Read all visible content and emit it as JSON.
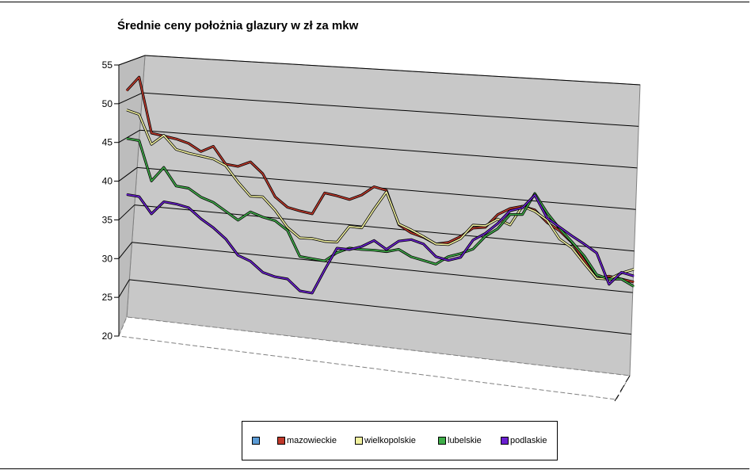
{
  "chart_data": {
    "type": "line",
    "title": "Średnie ceny położnia glazury w zł za mkw",
    "xlabel": "",
    "ylabel": "",
    "ylim": [
      20,
      55
    ],
    "yticks": [
      "20",
      "25",
      "30",
      "35",
      "40",
      "45",
      "50",
      "55"
    ],
    "grid": true,
    "legend_position": "bottom",
    "legend": [
      {
        "name": "",
        "color": "#5b9bd5"
      },
      {
        "name": "mazowieckie",
        "color": "#c0392b"
      },
      {
        "name": "wielkopolskie",
        "color": "#f2f2a0"
      },
      {
        "name": "lubelskie",
        "color": "#3fae49"
      },
      {
        "name": "podlaskie",
        "color": "#6a1fd0"
      }
    ],
    "series": [
      {
        "name": "",
        "color": "#5b9bd5",
        "values": []
      },
      {
        "name": "mazowieckie",
        "color": "#c0392b",
        "values": [
          50.3,
          52.3,
          45,
          44.8,
          44.6,
          44.2,
          43.3,
          44.2,
          42,
          41.9,
          42.7,
          41.3,
          38.4,
          37.2,
          36.9,
          36.7,
          39.7,
          39.5,
          39.2,
          40,
          41.3,
          41,
          36.6,
          35.7,
          35.3,
          34.6,
          35,
          36,
          37.3,
          37.6,
          39.5,
          40.5,
          41,
          40.7,
          39.2,
          38.3,
          36.9,
          34.7,
          32.5,
          33,
          32.8,
          32.6
        ]
      },
      {
        "name": "wielkopolskie",
        "color": "#f2f2a0",
        "values": [
          47.7,
          47.3,
          43.5,
          44.9,
          43.2,
          42.9,
          42.7,
          42.5,
          41.8,
          39.8,
          38.1,
          38.2,
          36.6,
          34.5,
          33.3,
          33.4,
          33.2,
          33.3,
          35.6,
          35.6,
          38.3,
          40.8,
          36.7,
          36.1,
          35.4,
          34.6,
          34.7,
          35.7,
          37.7,
          37.8,
          38.9,
          38.3,
          41,
          40.5,
          39.5,
          37.2,
          36.2,
          34.3,
          32.5,
          32.6,
          33.6,
          34.3
        ]
      },
      {
        "name": "lubelskie",
        "color": "#3fae49",
        "values": [
          43.9,
          43.8,
          38.6,
          40.6,
          38.3,
          38.2,
          37.2,
          36.7,
          35.7,
          34.7,
          36,
          35.5,
          35.2,
          34.1,
          30.8,
          30.7,
          30.6,
          31.9,
          32.7,
          32.7,
          32.8,
          32.8,
          33.3,
          32.5,
          32.2,
          31.9,
          33.1,
          33.7,
          34.5,
          36.4,
          37.6,
          39.7,
          39.9,
          42.9,
          40.5,
          38.6,
          37,
          35.3,
          33,
          32.6,
          32.8,
          32
        ]
      },
      {
        "name": "podlaskie",
        "color": "#6a1fd0",
        "values": [
          36.4,
          36.3,
          34.2,
          36,
          35.9,
          35.6,
          34.3,
          33.3,
          32,
          30,
          29.4,
          28.1,
          27.7,
          27.6,
          26.2,
          26.1,
          29.4,
          32.5,
          32.5,
          33.1,
          34.1,
          33.1,
          34.4,
          34.8,
          34.4,
          32.9,
          32.6,
          33.2,
          35.7,
          36.8,
          38.3,
          40.2,
          40.8,
          42.7,
          39.8,
          38.8,
          37.8,
          36.9,
          35.9,
          31.9,
          33.7,
          33.4
        ]
      }
    ]
  }
}
